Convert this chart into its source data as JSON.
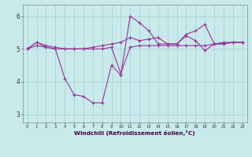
{
  "bg_color": "#c8eaea",
  "grid_color": "#aad4d4",
  "line_color": "#993399",
  "x_data": [
    0,
    1,
    2,
    3,
    4,
    5,
    6,
    7,
    8,
    9,
    10,
    11,
    12,
    13,
    14,
    15,
    16,
    17,
    18,
    19,
    20,
    21,
    22,
    23
  ],
  "series1": [
    5.0,
    5.1,
    5.05,
    5.0,
    5.0,
    5.0,
    5.0,
    5.0,
    5.0,
    5.05,
    4.25,
    5.05,
    5.1,
    5.1,
    5.1,
    5.1,
    5.1,
    5.1,
    5.1,
    5.1,
    5.15,
    5.15,
    5.2,
    5.2
  ],
  "series2": [
    5.0,
    5.2,
    5.05,
    5.0,
    4.1,
    3.6,
    3.55,
    3.35,
    3.35,
    4.5,
    4.2,
    6.0,
    5.8,
    5.55,
    5.15,
    5.15,
    5.15,
    5.4,
    5.25,
    4.95,
    5.15,
    5.15,
    5.2,
    5.2
  ],
  "series3": [
    5.0,
    5.2,
    5.1,
    5.05,
    5.0,
    5.0,
    5.0,
    5.05,
    5.1,
    5.15,
    5.2,
    5.35,
    5.25,
    5.3,
    5.35,
    5.15,
    5.15,
    5.45,
    5.55,
    5.75,
    5.15,
    5.2,
    5.2,
    5.2
  ],
  "xlabel": "Windchill (Refroidissement éolien,°C)",
  "ylim": [
    2.75,
    6.35
  ],
  "xlim": [
    -0.5,
    23.5
  ],
  "yticks": [
    3,
    4,
    5,
    6
  ],
  "xticks": [
    0,
    1,
    2,
    3,
    4,
    5,
    6,
    7,
    8,
    9,
    10,
    11,
    12,
    13,
    14,
    15,
    16,
    17,
    18,
    19,
    20,
    21,
    22,
    23
  ],
  "xtick_labels": [
    "0",
    "1",
    "2",
    "3",
    "4",
    "5",
    "6",
    "7",
    "8",
    "9",
    "10",
    "11",
    "12",
    "13",
    "14",
    "15",
    "16",
    "17",
    "18",
    "19",
    "20",
    "21",
    "22",
    "23"
  ]
}
